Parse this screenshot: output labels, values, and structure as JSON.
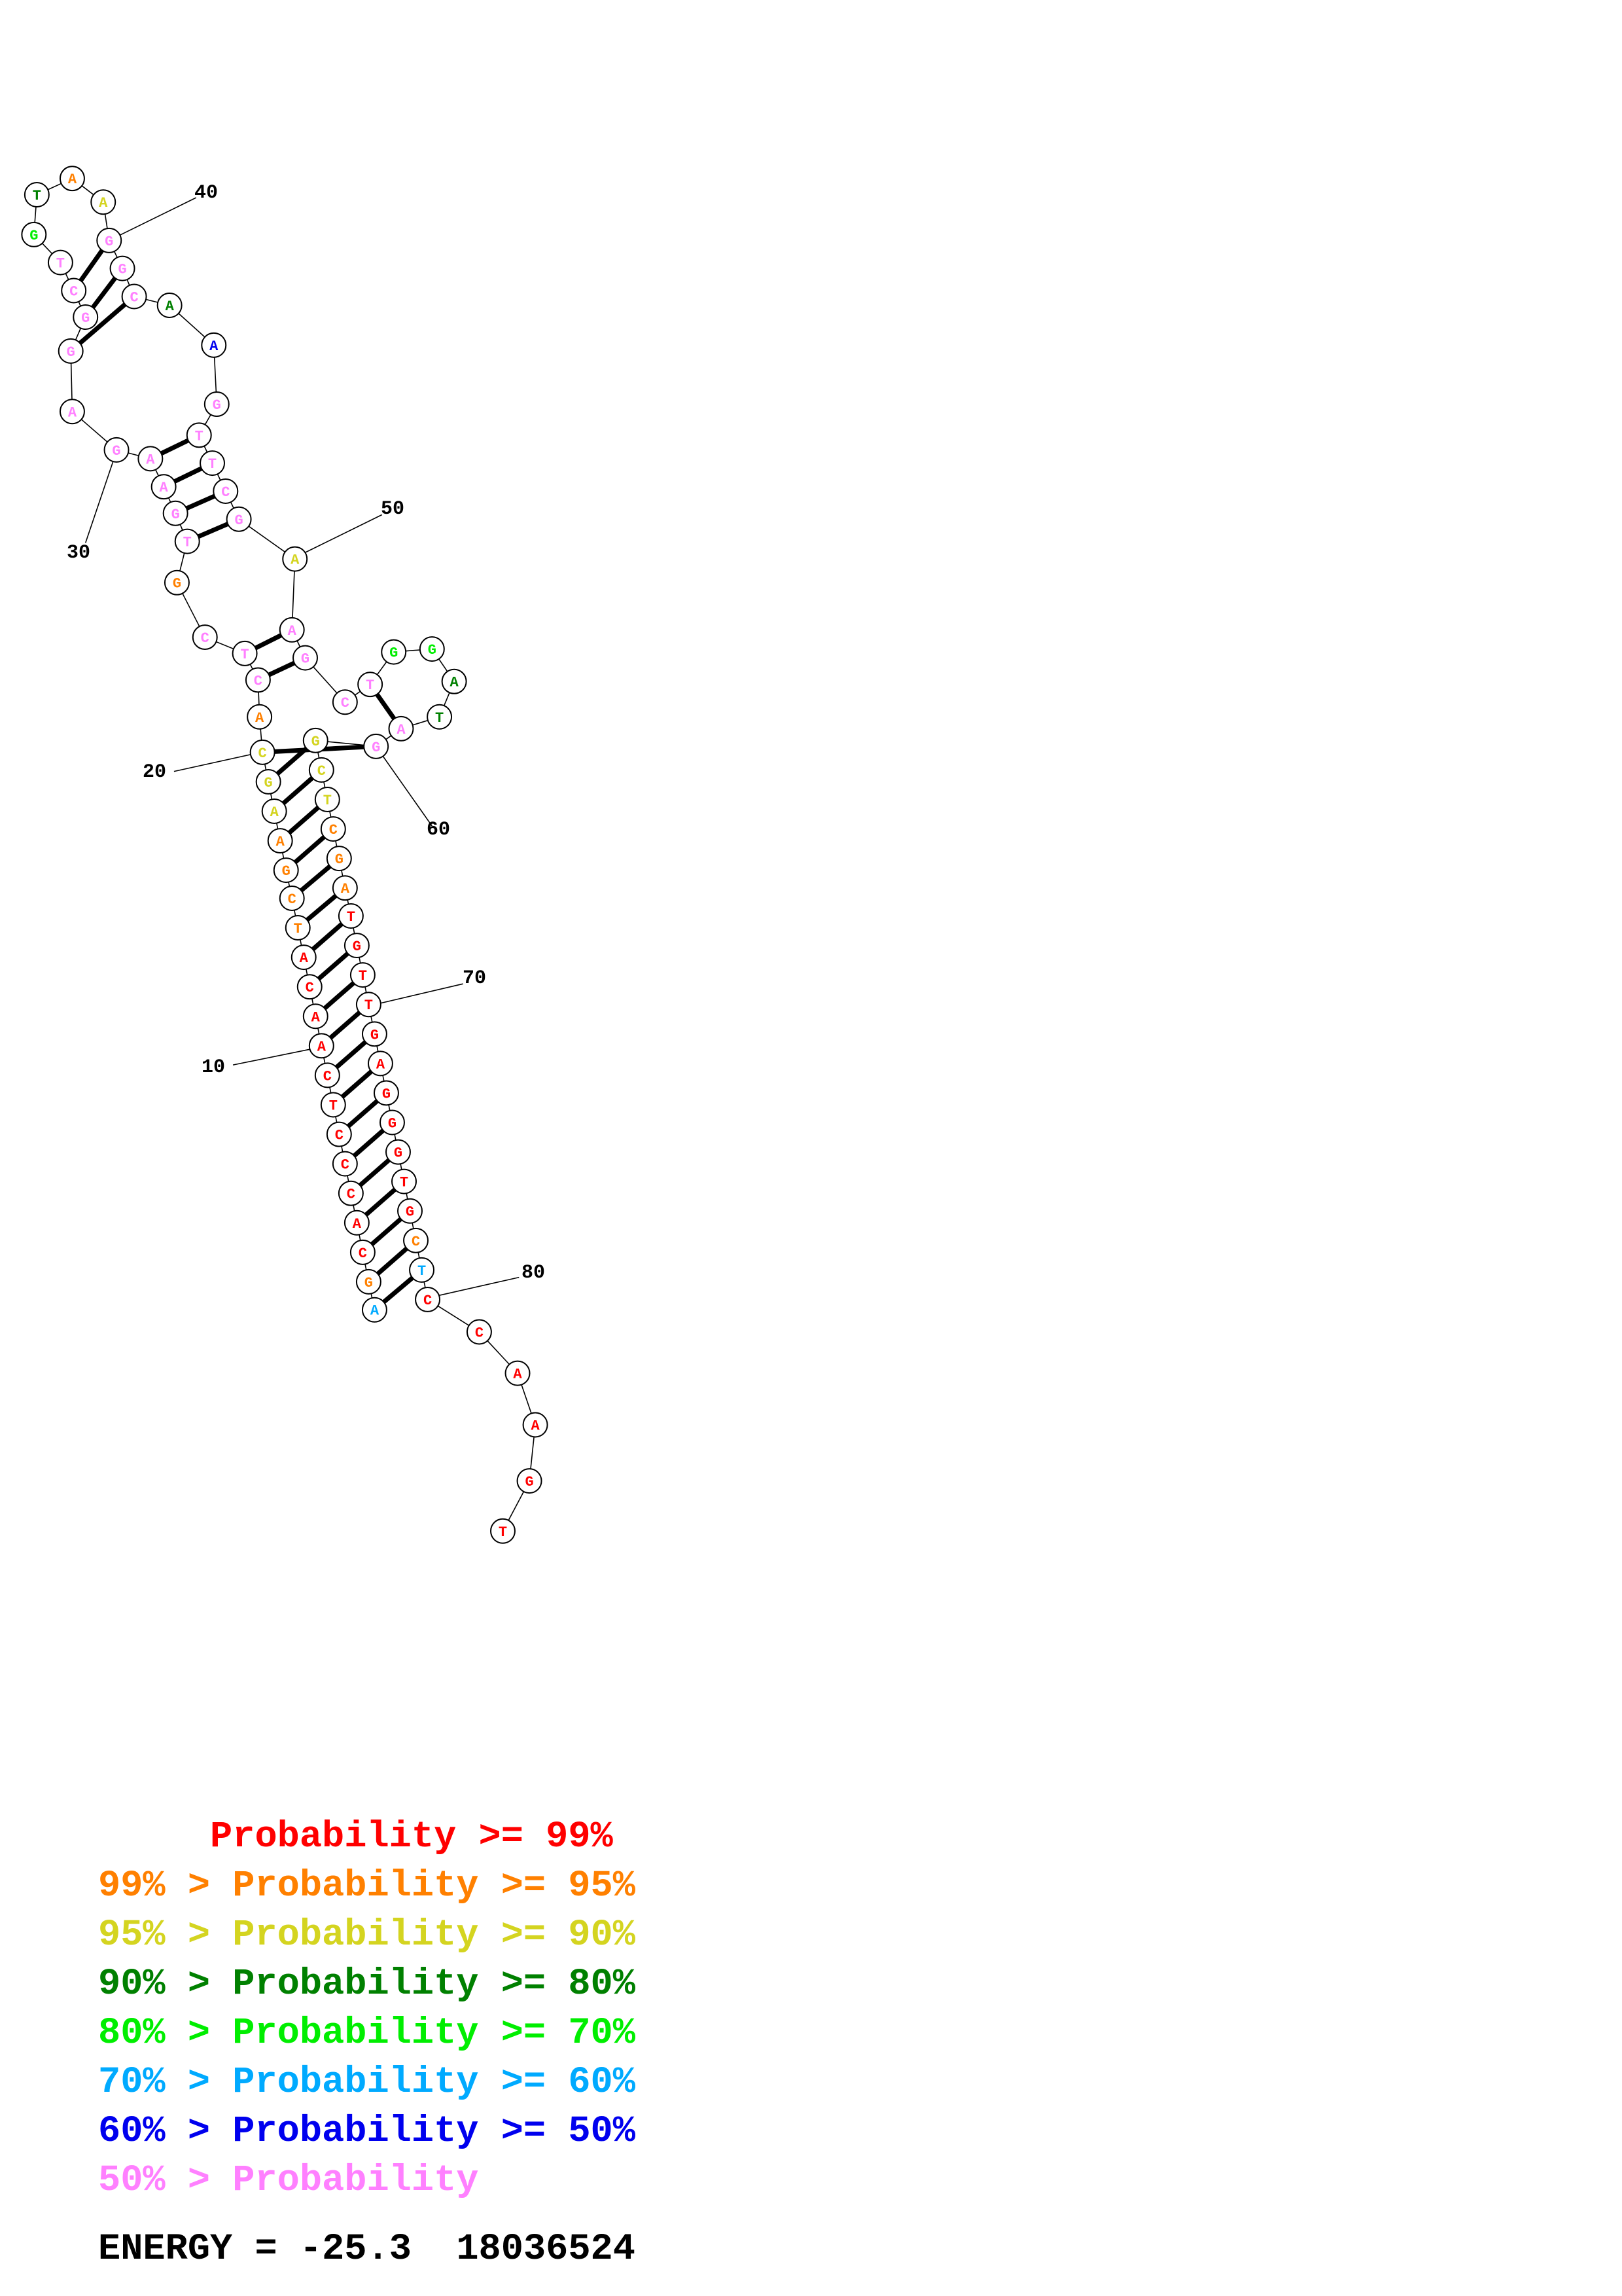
{
  "diagram": {
    "type": "rna-secondary-structure",
    "nucleotides": [
      {
        "n": 1,
        "base": "A",
        "c": "#00aaff"
      },
      {
        "n": 2,
        "base": "G",
        "c": "#ff8000"
      },
      {
        "n": 3,
        "base": "C",
        "c": "#ff0000"
      },
      {
        "n": 4,
        "base": "A",
        "c": "#ff0000"
      },
      {
        "n": 5,
        "base": "C",
        "c": "#ff0000"
      },
      {
        "n": 6,
        "base": "C",
        "c": "#ff0000"
      },
      {
        "n": 7,
        "base": "C",
        "c": "#ff0000"
      },
      {
        "n": 8,
        "base": "T",
        "c": "#ff0000"
      },
      {
        "n": 9,
        "base": "C",
        "c": "#ff0000"
      },
      {
        "n": 10,
        "base": "A",
        "c": "#ff0000"
      },
      {
        "n": 11,
        "base": "A",
        "c": "#ff0000"
      },
      {
        "n": 12,
        "base": "C",
        "c": "#ff0000"
      },
      {
        "n": 13,
        "base": "A",
        "c": "#ff0000"
      },
      {
        "n": 14,
        "base": "T",
        "c": "#ff8000"
      },
      {
        "n": 15,
        "base": "C",
        "c": "#ff8000"
      },
      {
        "n": 16,
        "base": "G",
        "c": "#ff8000"
      },
      {
        "n": 17,
        "base": "A",
        "c": "#ff8000"
      },
      {
        "n": 18,
        "base": "A",
        "c": "#d4d420"
      },
      {
        "n": 19,
        "base": "G",
        "c": "#d4d420"
      },
      {
        "n": 20,
        "base": "C",
        "c": "#d4d420"
      },
      {
        "n": 21,
        "base": "A",
        "c": "#ff8000"
      },
      {
        "n": 22,
        "base": "C",
        "c": "#ff80ff"
      },
      {
        "n": 23,
        "base": "T",
        "c": "#ff80ff"
      },
      {
        "n": 24,
        "base": "C",
        "c": "#ff80ff"
      },
      {
        "n": 25,
        "base": "G",
        "c": "#ff8000"
      },
      {
        "n": 26,
        "base": "T",
        "c": "#ff80ff"
      },
      {
        "n": 27,
        "base": "G",
        "c": "#ff80ff"
      },
      {
        "n": 28,
        "base": "A",
        "c": "#ff80ff"
      },
      {
        "n": 29,
        "base": "A",
        "c": "#ff80ff"
      },
      {
        "n": 30,
        "base": "G",
        "c": "#ff80ff"
      },
      {
        "n": 31,
        "base": "A",
        "c": "#ff80ff"
      },
      {
        "n": 32,
        "base": "G",
        "c": "#ff80ff"
      },
      {
        "n": 33,
        "base": "G",
        "c": "#ff80ff"
      },
      {
        "n": 34,
        "base": "C",
        "c": "#ff80ff"
      },
      {
        "n": 35,
        "base": "T",
        "c": "#ff80ff"
      },
      {
        "n": 36,
        "base": "G",
        "c": "#00ee00"
      },
      {
        "n": 37,
        "base": "T",
        "c": "#008000"
      },
      {
        "n": 38,
        "base": "A",
        "c": "#ff8000"
      },
      {
        "n": 39,
        "base": "A",
        "c": "#d4d420"
      },
      {
        "n": 40,
        "base": "G",
        "c": "#ff80ff"
      },
      {
        "n": 41,
        "base": "G",
        "c": "#ff80ff"
      },
      {
        "n": 42,
        "base": "C",
        "c": "#ff80ff"
      },
      {
        "n": 43,
        "base": "A",
        "c": "#008000"
      },
      {
        "n": 44,
        "base": "A",
        "c": "#0000ee"
      },
      {
        "n": 45,
        "base": "G",
        "c": "#ff80ff"
      },
      {
        "n": 46,
        "base": "T",
        "c": "#ff80ff"
      },
      {
        "n": 47,
        "base": "T",
        "c": "#ff80ff"
      },
      {
        "n": 48,
        "base": "C",
        "c": "#ff80ff"
      },
      {
        "n": 49,
        "base": "G",
        "c": "#ff80ff"
      },
      {
        "n": 50,
        "base": "A",
        "c": "#d4d420"
      },
      {
        "n": 51,
        "base": "A",
        "c": "#ff80ff"
      },
      {
        "n": 52,
        "base": "G",
        "c": "#ff80ff"
      },
      {
        "n": 53,
        "base": "C",
        "c": "#ff80ff"
      },
      {
        "n": 54,
        "base": "T",
        "c": "#ff80ff"
      },
      {
        "n": 55,
        "base": "G",
        "c": "#00ee00"
      },
      {
        "n": 56,
        "base": "G",
        "c": "#00ee00"
      },
      {
        "n": 57,
        "base": "A",
        "c": "#008000"
      },
      {
        "n": 58,
        "base": "T",
        "c": "#008000"
      },
      {
        "n": 59,
        "base": "A",
        "c": "#ff80ff"
      },
      {
        "n": 60,
        "base": "G",
        "c": "#ff80ff"
      },
      {
        "n": 61,
        "base": "G",
        "c": "#d4d420"
      },
      {
        "n": 62,
        "base": "C",
        "c": "#d4d420"
      },
      {
        "n": 63,
        "base": "T",
        "c": "#d4d420"
      },
      {
        "n": 64,
        "base": "C",
        "c": "#ff8000"
      },
      {
        "n": 65,
        "base": "G",
        "c": "#ff8000"
      },
      {
        "n": 66,
        "base": "A",
        "c": "#ff8000"
      },
      {
        "n": 67,
        "base": "T",
        "c": "#ff0000"
      },
      {
        "n": 68,
        "base": "G",
        "c": "#ff0000"
      },
      {
        "n": 69,
        "base": "T",
        "c": "#ff0000"
      },
      {
        "n": 70,
        "base": "T",
        "c": "#ff0000"
      },
      {
        "n": 71,
        "base": "G",
        "c": "#ff0000"
      },
      {
        "n": 72,
        "base": "A",
        "c": "#ff0000"
      },
      {
        "n": 73,
        "base": "G",
        "c": "#ff0000"
      },
      {
        "n": 74,
        "base": "G",
        "c": "#ff0000"
      },
      {
        "n": 75,
        "base": "G",
        "c": "#ff0000"
      },
      {
        "n": 76,
        "base": "T",
        "c": "#ff0000"
      },
      {
        "n": 77,
        "base": "G",
        "c": "#ff0000"
      },
      {
        "n": 78,
        "base": "C",
        "c": "#ff8000"
      },
      {
        "n": 79,
        "base": "T",
        "c": "#00aaff"
      },
      {
        "n": 80,
        "base": "C",
        "c": "#ff0000"
      },
      {
        "n": 81,
        "base": "C",
        "c": "#ff0000"
      },
      {
        "n": 82,
        "base": "A",
        "c": "#ff0000"
      },
      {
        "n": 83,
        "base": "A",
        "c": "#ff0000"
      },
      {
        "n": 84,
        "base": "G",
        "c": "#ff0000"
      },
      {
        "n": 85,
        "base": "T",
        "c": "#ff0000"
      }
    ],
    "pairs": [
      [
        1,
        79
      ],
      [
        2,
        78
      ],
      [
        3,
        77
      ],
      [
        4,
        76
      ],
      [
        5,
        75
      ],
      [
        6,
        74
      ],
      [
        7,
        73
      ],
      [
        8,
        72
      ],
      [
        9,
        71
      ],
      [
        10,
        70
      ],
      [
        11,
        69
      ],
      [
        12,
        68
      ],
      [
        13,
        67
      ],
      [
        14,
        66
      ],
      [
        15,
        65
      ],
      [
        16,
        64
      ],
      [
        17,
        63
      ],
      [
        18,
        62
      ],
      [
        19,
        61
      ],
      [
        20,
        60
      ],
      [
        22,
        52
      ],
      [
        23,
        51
      ],
      [
        26,
        49
      ],
      [
        27,
        48
      ],
      [
        28,
        47
      ],
      [
        29,
        46
      ],
      [
        32,
        42
      ],
      [
        33,
        41
      ],
      [
        34,
        40
      ],
      [
        54,
        59
      ]
    ],
    "position_labels": [
      "10",
      "20",
      "30",
      "40",
      "50",
      "60",
      "70",
      "80"
    ]
  },
  "legend": {
    "rows": [
      {
        "prefix": "     ",
        "label": "Probability >= 99%",
        "color": "#ff0000"
      },
      {
        "prefix": "99% > ",
        "label": "Probability >= 95%",
        "color": "#ff8000"
      },
      {
        "prefix": "95% > ",
        "label": "Probability >= 90%",
        "color": "#d4d420"
      },
      {
        "prefix": "90% > ",
        "label": "Probability >= 80%",
        "color": "#008000"
      },
      {
        "prefix": "80% > ",
        "label": "Probability >= 70%",
        "color": "#00ee00"
      },
      {
        "prefix": "70% > ",
        "label": "Probability >= 60%",
        "color": "#00aaff"
      },
      {
        "prefix": "60% > ",
        "label": "Probability >= 50%",
        "color": "#0000ee"
      },
      {
        "prefix": "50% > ",
        "label": "Probability",
        "color": "#ff80ff"
      }
    ]
  },
  "energy": {
    "label": "ENERGY =",
    "value": "-25.3",
    "id": "18036524"
  }
}
